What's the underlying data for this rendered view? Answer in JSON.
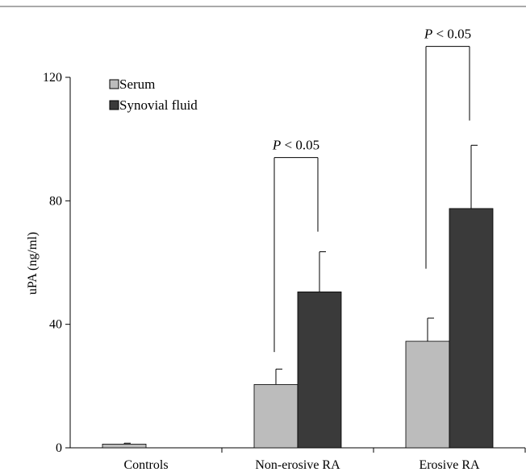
{
  "colors": {
    "serum": "#bcbcbc",
    "synovial": "#3a3a3a",
    "axis": "#000000"
  },
  "chart_data": {
    "type": "bar",
    "title": "",
    "xlabel": "",
    "ylabel": "uPA (ng/ml)",
    "ylim": [
      0,
      120
    ],
    "yticks": [
      "0",
      "40",
      "80",
      "120"
    ],
    "categories": [
      "Controls",
      "Non-erosive RA",
      "Erosive RA"
    ],
    "series": [
      {
        "name": "Serum",
        "values": [
          1.2,
          20.5,
          34.5
        ],
        "errors": [
          0.3,
          5,
          7.5
        ]
      },
      {
        "name": "Synovial fluid",
        "values": [
          null,
          50.5,
          77.5
        ],
        "errors": [
          null,
          13,
          20.5
        ]
      }
    ],
    "legend": {
      "position": "top-left"
    },
    "annotations": [
      {
        "category": "Non-erosive RA",
        "label_prefix": "P",
        "label_rest": " < 0.05",
        "from_y": 31,
        "to_y": 70,
        "top_y": 94
      },
      {
        "category": "Erosive RA",
        "label_prefix": "P",
        "label_rest": " < 0.05",
        "from_y": 58,
        "to_y": 106,
        "top_y": 130
      }
    ]
  }
}
